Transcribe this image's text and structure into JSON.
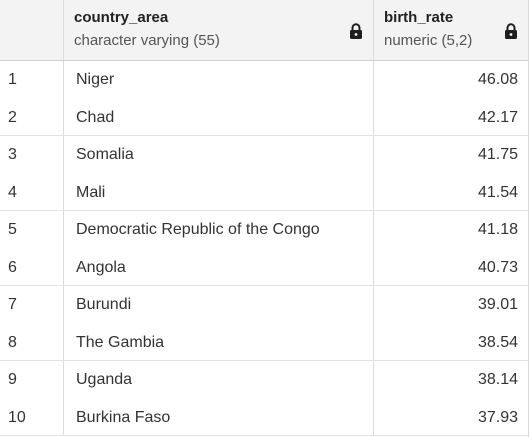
{
  "columns": [
    {
      "name": "country_area",
      "type": "character varying (55)"
    },
    {
      "name": "birth_rate",
      "type": "numeric (5,2)"
    }
  ],
  "rows": [
    {
      "n": "1",
      "country_area": "Niger",
      "birth_rate": "46.08"
    },
    {
      "n": "2",
      "country_area": "Chad",
      "birth_rate": "42.17"
    },
    {
      "n": "3",
      "country_area": "Somalia",
      "birth_rate": "41.75"
    },
    {
      "n": "4",
      "country_area": "Mali",
      "birth_rate": "41.54"
    },
    {
      "n": "5",
      "country_area": "Democratic Republic of the Congo",
      "birth_rate": "41.18"
    },
    {
      "n": "6",
      "country_area": "Angola",
      "birth_rate": "40.73"
    },
    {
      "n": "7",
      "country_area": "Burundi",
      "birth_rate": "39.01"
    },
    {
      "n": "8",
      "country_area": "The Gambia",
      "birth_rate": "38.54"
    },
    {
      "n": "9",
      "country_area": "Uganda",
      "birth_rate": "38.14"
    },
    {
      "n": "10",
      "country_area": "Burkina Faso",
      "birth_rate": "37.93"
    }
  ],
  "icons": {
    "lock": "lock-icon"
  }
}
